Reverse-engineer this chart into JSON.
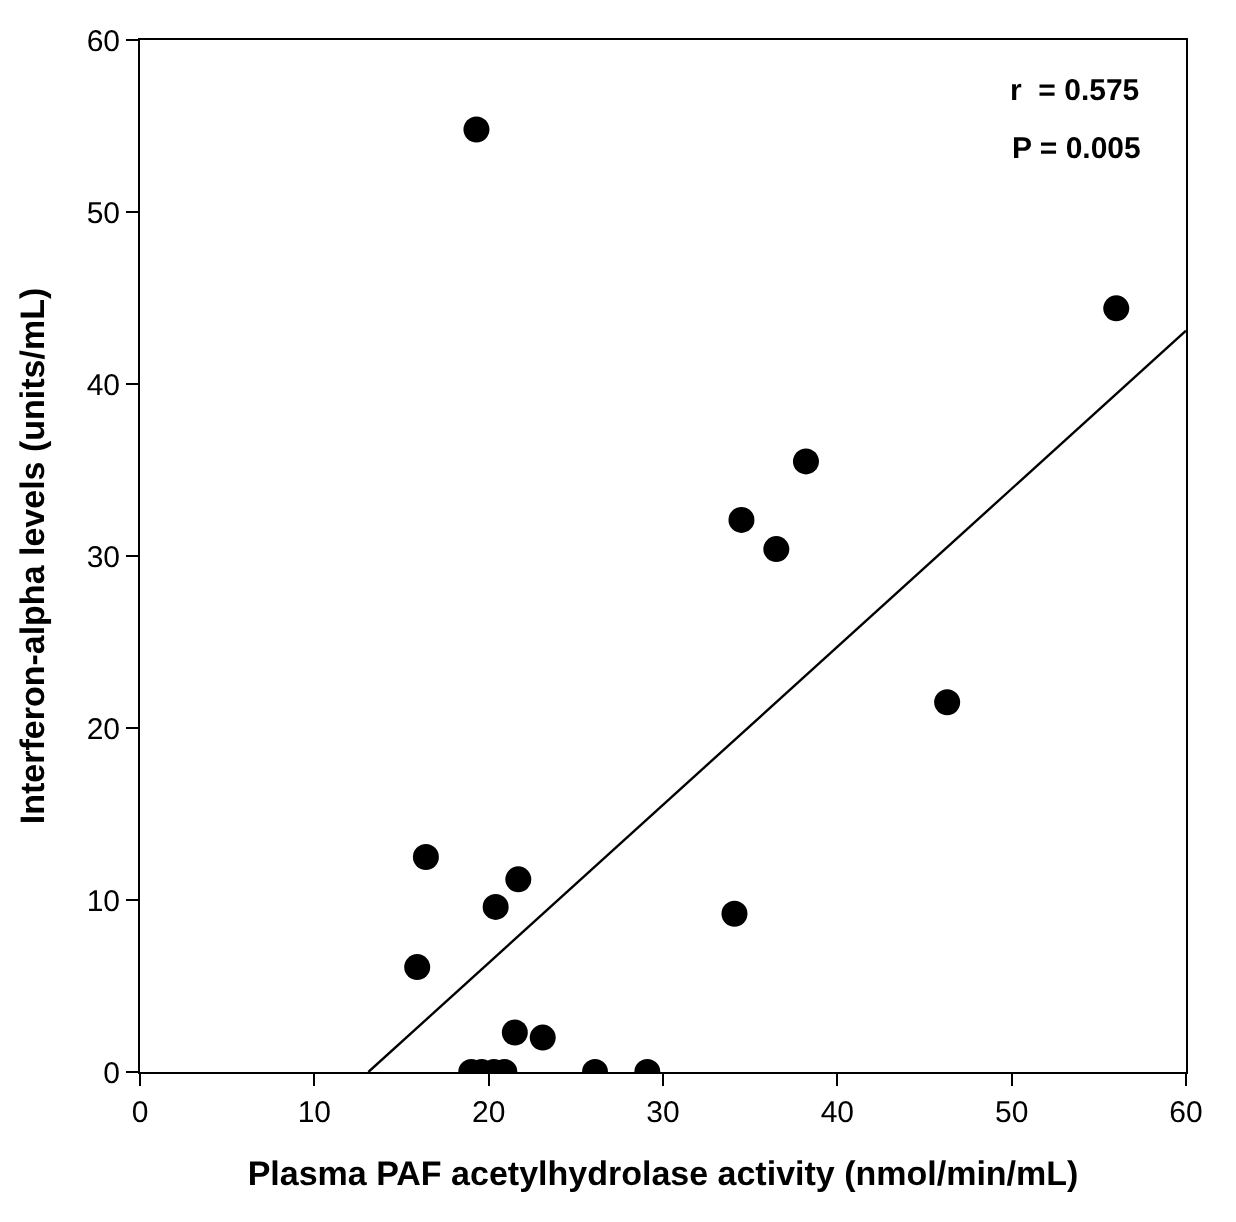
{
  "chart_data": {
    "type": "scatter",
    "xlabel": "Plasma PAF acetylhydrolase activity (nmol/min/mL)",
    "ylabel": "Interferon-alpha levels (units/mL)",
    "annotations": [
      "r  = 0.575",
      "P = 0.005"
    ],
    "xlim": [
      0,
      60
    ],
    "xticks": [
      0,
      10,
      20,
      30,
      40,
      50,
      60
    ],
    "ylim": [
      0,
      60
    ],
    "yticks": [
      0,
      10,
      20,
      30,
      40,
      50,
      60
    ],
    "grid": false,
    "series": [
      {
        "color": "#000000",
        "marker": "circle",
        "x": [
          19.3,
          56.0,
          38.2,
          34.5,
          36.5,
          46.3,
          16.4,
          21.7,
          20.4,
          34.1,
          15.9,
          21.5,
          23.1,
          19.0,
          19.6,
          20.3,
          20.9,
          26.1,
          29.1
        ],
        "values": [
          54.8,
          44.4,
          35.5,
          32.1,
          30.4,
          21.5,
          12.5,
          11.2,
          9.6,
          9.2,
          6.1,
          2.3,
          2.0,
          0,
          0,
          0,
          0,
          0,
          0
        ]
      },
      {
        "type": "line",
        "color": "#000000",
        "line_style": "solid",
        "x": [
          13.1,
          60
        ],
        "values": [
          0,
          43.1
        ]
      }
    ]
  }
}
